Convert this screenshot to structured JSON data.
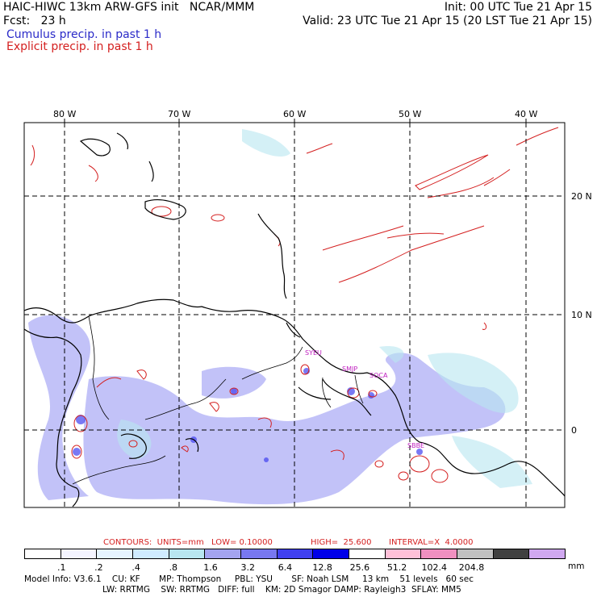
{
  "header": {
    "line1_left": "HAIC-HIWC 13km ARW-GFS init   NCAR/MMM",
    "line1_right": "Init: 00 UTC Tue 21 Apr 15",
    "line2_left": "Fcst:   23 h",
    "line2_right": "Valid: 23 UTC Tue 21 Apr 15 (20 LST Tue 21 Apr 15)",
    "line3": "Cumulus precip. in past 1 h",
    "line4": "Explicit precip. in past 1 h"
  },
  "colors": {
    "cumulus": "#2a2ac8",
    "explicit": "#d42020",
    "station": "#c020c0"
  },
  "map": {
    "lon_labels": [
      "80 W",
      "70 W",
      "60 W",
      "50 W",
      "40 W"
    ],
    "lat_labels": [
      "20 N",
      "10 N",
      "0"
    ],
    "stations": [
      "SYEU",
      "SMJP",
      "SOCA",
      "SBBE"
    ]
  },
  "contours": {
    "units": "CONTOURS:  UNITS=mm",
    "low": "LOW= 0.10000",
    "high": "HIGH=  25.600",
    "interval": "INTERVAL=X  4.0000"
  },
  "colorbar": {
    "colors": [
      "#ffffff",
      "#f4f4ff",
      "#e6f4ff",
      "#d0ecff",
      "#b8e6f0",
      "#a4a4f0",
      "#7878f0",
      "#4040f0",
      "#0000e8",
      "#ffffff",
      "#ffc0d8",
      "#f090c0",
      "#c0c0c0",
      "#404040",
      "#d0a8f0"
    ],
    "labels": [
      ".1",
      ".2",
      ".4",
      ".8",
      "1.6",
      "3.2",
      "6.4",
      "12.8",
      "25.6",
      "51.2",
      "102.4",
      "204.8"
    ],
    "unit": "mm"
  },
  "footer": {
    "line1": "Model Info: V3.6.1    CU: KF       MP: Thompson     PBL: YSU       SF: Noah LSM     13 km    51 levels   60 sec",
    "line2": "LW: RRTMG    SW: RRTMG   DIFF: full    KM: 2D Smagor DAMP: Rayleigh3  SFLAY: MM5"
  }
}
